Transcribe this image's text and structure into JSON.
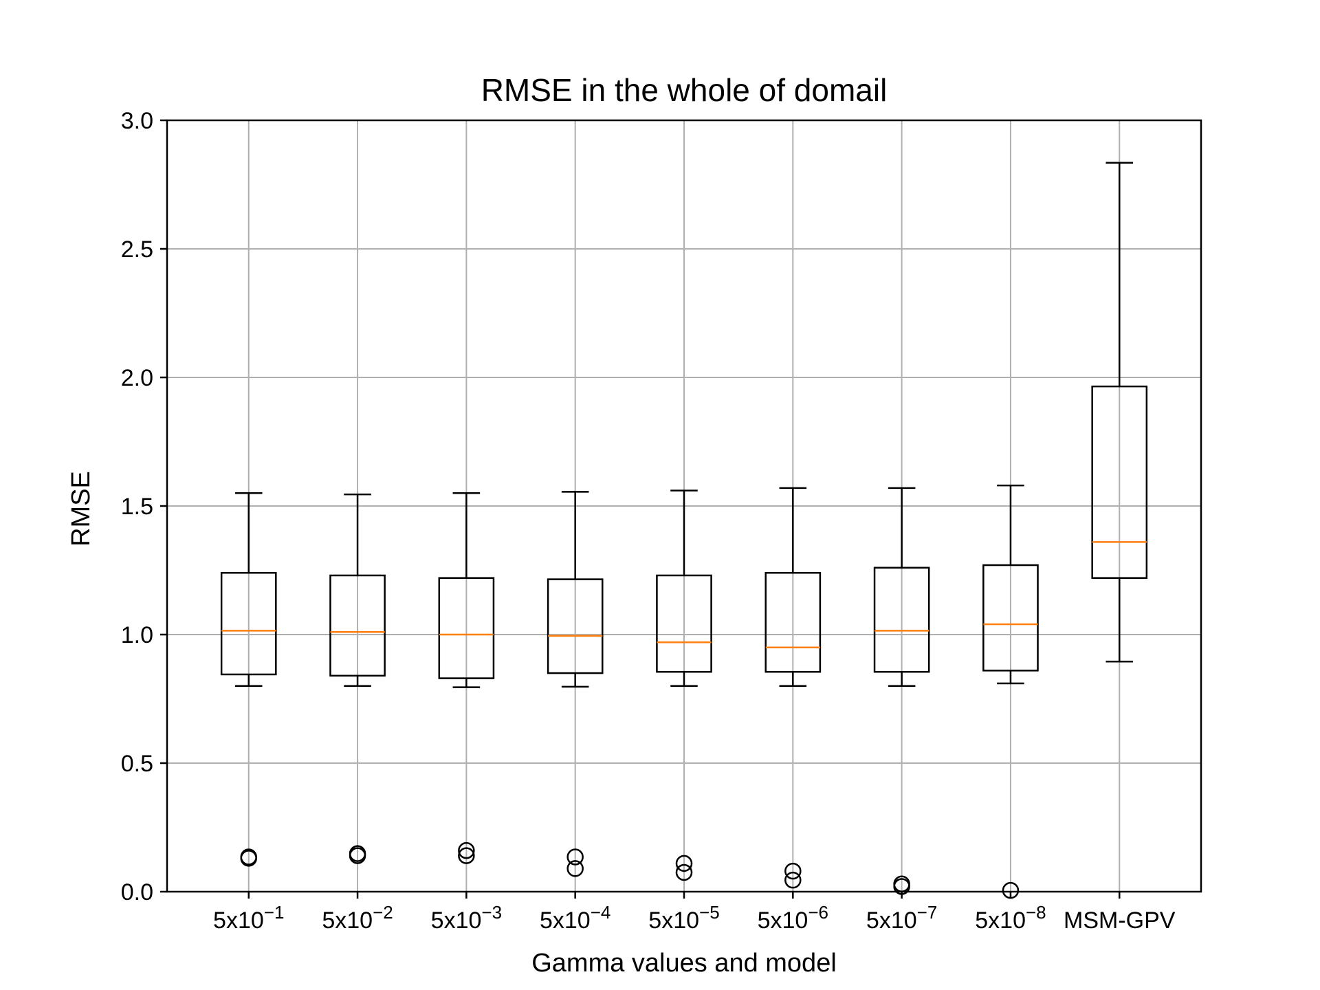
{
  "chart_data": {
    "type": "box",
    "title": "RMSE in the whole of domail",
    "xlabel": "Gamma values and model",
    "ylabel": "RMSE",
    "ylim": [
      0.0,
      3.0
    ],
    "yticks": [
      0.0,
      0.5,
      1.0,
      1.5,
      2.0,
      2.5,
      3.0
    ],
    "ytick_labels": [
      "0.0",
      "0.5",
      "1.0",
      "1.5",
      "2.0",
      "2.5",
      "3.0"
    ],
    "grid": true,
    "median_color": "#ff7f0e",
    "box_color": "#000000",
    "grid_color": "#b0b0b0",
    "categories": [
      {
        "base": "5x10",
        "exp": "−1",
        "label": "5x10^-1"
      },
      {
        "base": "5x10",
        "exp": "−2",
        "label": "5x10^-2"
      },
      {
        "base": "5x10",
        "exp": "−3",
        "label": "5x10^-3"
      },
      {
        "base": "5x10",
        "exp": "−4",
        "label": "5x10^-4"
      },
      {
        "base": "5x10",
        "exp": "−5",
        "label": "5x10^-5"
      },
      {
        "base": "5x10",
        "exp": "−6",
        "label": "5x10^-6"
      },
      {
        "base": "5x10",
        "exp": "−7",
        "label": "5x10^-7"
      },
      {
        "base": "5x10",
        "exp": "−8",
        "label": "5x10^-8"
      },
      {
        "base": "MSM-GPV",
        "exp": "",
        "label": "MSM-GPV"
      }
    ],
    "boxes": [
      {
        "whisker_low": 0.8,
        "q1": 0.845,
        "median": 1.015,
        "q3": 1.24,
        "whisker_high": 1.55,
        "outliers": [
          0.135,
          0.13
        ]
      },
      {
        "whisker_low": 0.8,
        "q1": 0.84,
        "median": 1.01,
        "q3": 1.23,
        "whisker_high": 1.545,
        "outliers": [
          0.148,
          0.14
        ]
      },
      {
        "whisker_low": 0.795,
        "q1": 0.83,
        "median": 1.0,
        "q3": 1.22,
        "whisker_high": 1.55,
        "outliers": [
          0.16,
          0.14
        ]
      },
      {
        "whisker_low": 0.797,
        "q1": 0.85,
        "median": 0.995,
        "q3": 1.215,
        "whisker_high": 1.555,
        "outliers": [
          0.135,
          0.09
        ]
      },
      {
        "whisker_low": 0.8,
        "q1": 0.855,
        "median": 0.97,
        "q3": 1.23,
        "whisker_high": 1.56,
        "outliers": [
          0.11,
          0.075
        ]
      },
      {
        "whisker_low": 0.8,
        "q1": 0.855,
        "median": 0.95,
        "q3": 1.24,
        "whisker_high": 1.57,
        "outliers": [
          0.08,
          0.045
        ]
      },
      {
        "whisker_low": 0.8,
        "q1": 0.855,
        "median": 1.015,
        "q3": 1.26,
        "whisker_high": 1.57,
        "outliers": [
          0.03,
          0.02
        ]
      },
      {
        "whisker_low": 0.81,
        "q1": 0.86,
        "median": 1.04,
        "q3": 1.27,
        "whisker_high": 1.58,
        "outliers": [
          0.005
        ]
      },
      {
        "whisker_low": 0.895,
        "q1": 1.22,
        "median": 1.36,
        "q3": 1.965,
        "whisker_high": 2.835,
        "outliers": []
      }
    ]
  }
}
